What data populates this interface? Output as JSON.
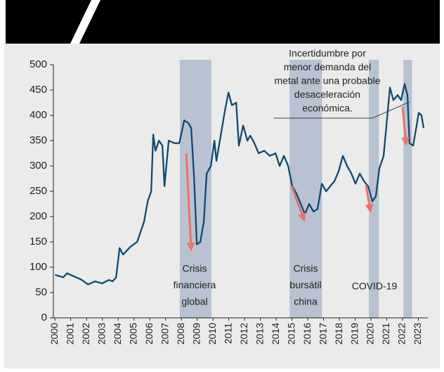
{
  "chart_data": {
    "type": "line",
    "x": [
      2000.0,
      2000.53,
      2000.76,
      2001.2,
      2001.64,
      2002.09,
      2002.53,
      2002.98,
      2003.42,
      2003.64,
      2003.87,
      2004.09,
      2004.31,
      2004.76,
      2005.2,
      2005.42,
      2005.64,
      2005.87,
      2006.09,
      2006.22,
      2006.36,
      2006.58,
      2006.8,
      2006.93,
      2007.2,
      2007.56,
      2007.87,
      2008.18,
      2008.44,
      2008.62,
      2008.8,
      2008.98,
      2009.2,
      2009.42,
      2009.6,
      2009.87,
      2010.09,
      2010.22,
      2010.49,
      2010.76,
      2010.98,
      2011.2,
      2011.47,
      2011.64,
      2011.91,
      2012.18,
      2012.36,
      2012.62,
      2012.89,
      2013.24,
      2013.6,
      2013.96,
      2014.22,
      2014.49,
      2014.76,
      2015.02,
      2015.29,
      2015.56,
      2015.82,
      2016.09,
      2016.36,
      2016.62,
      2016.89,
      2017.16,
      2017.42,
      2017.69,
      2017.96,
      2018.22,
      2018.49,
      2018.76,
      2019.02,
      2019.29,
      2019.56,
      2019.82,
      2020.09,
      2020.31,
      2020.53,
      2020.8,
      2020.98,
      2021.2,
      2021.42,
      2021.69,
      2021.91,
      2022.13,
      2022.31,
      2022.44,
      2022.67,
      2022.89,
      2023.02,
      2023.2,
      2023.33
    ],
    "series": [
      {
        "color": "#0f4a6e",
        "values": [
          85,
          80,
          88,
          82,
          76,
          66,
          72,
          68,
          75,
          72,
          80,
          138,
          125,
          140,
          150,
          170,
          190,
          230,
          250,
          362,
          330,
          350,
          340,
          260,
          350,
          345,
          345,
          390,
          385,
          375,
          280,
          145,
          150,
          190,
          285,
          300,
          350,
          310,
          360,
          410,
          445,
          420,
          425,
          340,
          380,
          350,
          360,
          345,
          325,
          330,
          320,
          325,
          300,
          320,
          300,
          260,
          245,
          225,
          205,
          225,
          210,
          215,
          265,
          250,
          260,
          270,
          290,
          320,
          300,
          285,
          265,
          285,
          270,
          260,
          230,
          240,
          295,
          320,
          380,
          455,
          430,
          440,
          430,
          462,
          440,
          345,
          340,
          380,
          405,
          400,
          375
        ]
      }
    ],
    "xlim": [
      1999.9,
      2023.6
    ],
    "ylim": [
      0,
      500
    ],
    "xticks": [
      2000,
      2001,
      2002,
      2003,
      2004,
      2005,
      2006,
      2007,
      2008,
      2009,
      2010,
      2011,
      2012,
      2013,
      2014,
      2015,
      2016,
      2017,
      2018,
      2019,
      2020,
      2021,
      2022,
      2023
    ],
    "yticks": [
      0,
      50,
      100,
      150,
      200,
      250,
      300,
      350,
      400,
      450,
      500
    ],
    "shaded_periods": [
      [
        2007.9,
        2009.9
      ],
      [
        2014.85,
        2016.9
      ],
      [
        2019.87,
        2020.5
      ],
      [
        2022.05,
        2022.6
      ]
    ],
    "shade_color": "#b8c2d2",
    "arrows": [
      [
        [
          2008.31,
          325
        ],
        [
          2008.62,
          135
        ]
      ],
      [
        [
          2014.98,
          260
        ],
        [
          2015.78,
          193
        ]
      ],
      [
        [
          2019.69,
          262
        ],
        [
          2019.96,
          211
        ]
      ],
      [
        [
          2022.0,
          417
        ],
        [
          2022.22,
          343
        ]
      ]
    ],
    "arrow_color": "#e8736b",
    "annotations": [
      {
        "lines": [
          "Crisis",
          "financiera",
          "global"
        ]
      },
      {
        "lines": [
          "Crisis",
          "bursátil",
          "china"
        ]
      },
      {
        "lines": [
          "COVID-19"
        ]
      },
      {
        "lines": [
          "Incertidumbre por",
          "menor demanda del",
          "metal ante una probable",
          "desaceleración",
          "económica."
        ]
      }
    ]
  }
}
